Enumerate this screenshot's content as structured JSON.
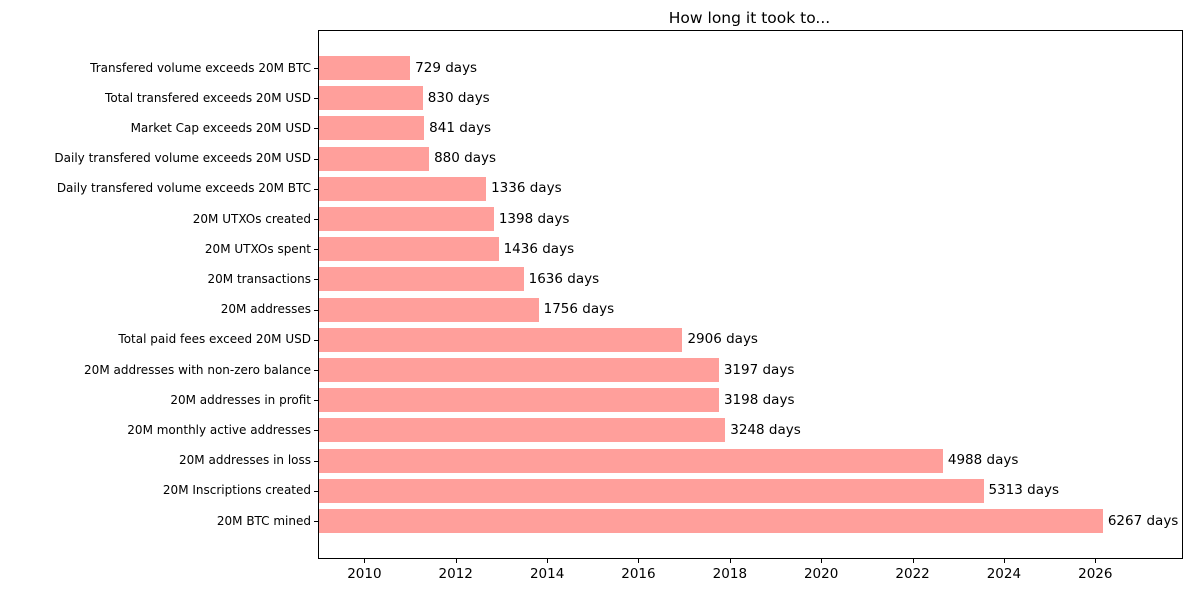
{
  "chart_data": {
    "type": "bar",
    "orientation": "horizontal",
    "title": "How long it took to...",
    "xlabel": "",
    "ylabel": "",
    "grid": false,
    "legend": false,
    "colors": {
      "bar": "#ff9f9b",
      "text": "#000000",
      "spine": "#000000",
      "background": "#ffffff"
    },
    "bars": [
      {
        "label": "Transfered volume exceeds 20M BTC",
        "value": 729,
        "annotation": "729 days"
      },
      {
        "label": "Total transfered exceeds 20M USD",
        "value": 830,
        "annotation": "830 days"
      },
      {
        "label": "Market Cap exceeds 20M USD",
        "value": 841,
        "annotation": "841 days"
      },
      {
        "label": "Daily transfered volume exceeds 20M USD",
        "value": 880,
        "annotation": "880 days"
      },
      {
        "label": "Daily transfered volume exceeds 20M BTC",
        "value": 1336,
        "annotation": "1336 days"
      },
      {
        "label": "20M UTXOs created",
        "value": 1398,
        "annotation": "1398 days"
      },
      {
        "label": "20M UTXOs spent",
        "value": 1436,
        "annotation": "1436 days"
      },
      {
        "label": "20M transactions",
        "value": 1636,
        "annotation": "1636 days"
      },
      {
        "label": "20M addresses",
        "value": 1756,
        "annotation": "1756 days"
      },
      {
        "label": "Total paid fees exceed 20M USD",
        "value": 2906,
        "annotation": "2906 days"
      },
      {
        "label": "20M addresses with non-zero balance",
        "value": 3197,
        "annotation": "3197 days"
      },
      {
        "label": "20M addresses in profit",
        "value": 3198,
        "annotation": "3198 days"
      },
      {
        "label": "20M monthly active addresses",
        "value": 3248,
        "annotation": "3248 days"
      },
      {
        "label": "20M addresses in loss",
        "value": 4988,
        "annotation": "4988 days"
      },
      {
        "label": "20M Inscriptions created",
        "value": 5313,
        "annotation": "5313 days"
      },
      {
        "label": "20M BTC mined",
        "value": 6267,
        "annotation": "6267 days"
      }
    ],
    "x_axis": {
      "unit": "days since first bar epoch",
      "domain_days": [
        0,
        6900
      ],
      "tick_labels": [
        "2010",
        "2012",
        "2014",
        "2016",
        "2018",
        "2020",
        "2022",
        "2024",
        "2026"
      ],
      "tick_values_days": [
        363,
        1093,
        1824,
        2554,
        3285,
        4015,
        4746,
        5476,
        6207
      ]
    }
  }
}
